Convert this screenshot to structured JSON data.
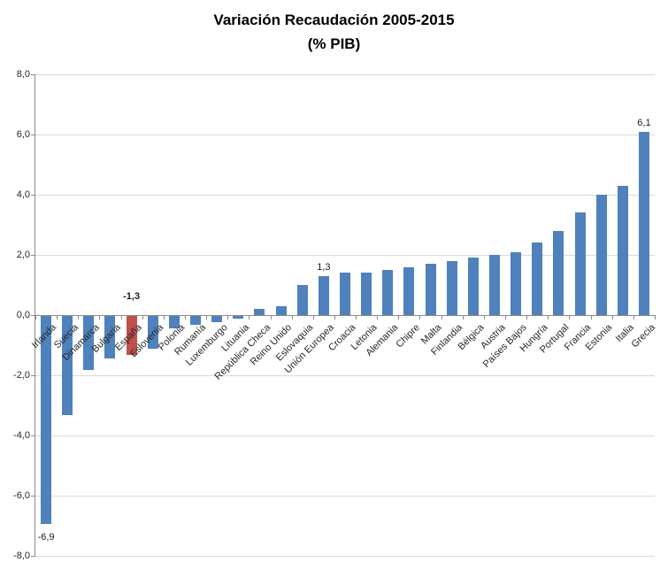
{
  "chart_data": {
    "type": "bar",
    "title": "Variación Recaudación 2005-2015",
    "subtitle": "(% PIB)",
    "xlabel": "",
    "ylabel": "",
    "ylim": [
      -8,
      8
    ],
    "grid": true,
    "legend": false,
    "y_ticks": [
      {
        "value": 8,
        "label": "8,0"
      },
      {
        "value": 6,
        "label": "6,0"
      },
      {
        "value": 4,
        "label": "4,0"
      },
      {
        "value": 2,
        "label": "2,0"
      },
      {
        "value": 0,
        "label": "0,0"
      },
      {
        "value": -2,
        "label": "-2,0"
      },
      {
        "value": -4,
        "label": "-4,0"
      },
      {
        "value": -6,
        "label": "-6,0"
      },
      {
        "value": -8,
        "label": "-8,0"
      }
    ],
    "categories": [
      "Irlanda",
      "Suecia",
      "Dinamarca",
      "Bulgaria",
      "España",
      "Eslovenia",
      "Polonia",
      "Rumanía",
      "Luxemburgo",
      "Lituania",
      "República Checa",
      "Reino Unido",
      "Eslovaquia",
      "Unión Europea",
      "Croacia",
      "Letonia",
      "Alemania",
      "Chipre",
      "Malta",
      "Finlandia",
      "Bélgica",
      "Austria",
      "Países Bajos",
      "Hungría",
      "Portugal",
      "Francia",
      "Estonia",
      "Italia",
      "Grecia"
    ],
    "values": [
      -6.9,
      -3.3,
      -1.8,
      -1.4,
      -1.3,
      -1.1,
      -0.4,
      -0.3,
      -0.2,
      -0.1,
      0.2,
      0.3,
      1.0,
      1.3,
      1.4,
      1.4,
      1.5,
      1.6,
      1.7,
      1.8,
      1.9,
      2.0,
      2.1,
      2.4,
      2.8,
      3.4,
      4.0,
      4.3,
      6.1
    ],
    "bar_color": "#4F81BD",
    "highlight_color": "#C0504D",
    "highlight_category": "España",
    "gridline_color": "#d9d9d9",
    "axis_color": "#8a8a8a",
    "point_labels": [
      {
        "category": "Irlanda",
        "text": "-6,9",
        "placement": "below",
        "bold": false
      },
      {
        "category": "España",
        "text": "-1,3",
        "placement": "above-axis",
        "bold": true
      },
      {
        "category": "Unión Europea",
        "text": "1,3",
        "placement": "above",
        "bold": false
      },
      {
        "category": "Grecia",
        "text": "6,1",
        "placement": "above",
        "bold": false
      }
    ]
  }
}
